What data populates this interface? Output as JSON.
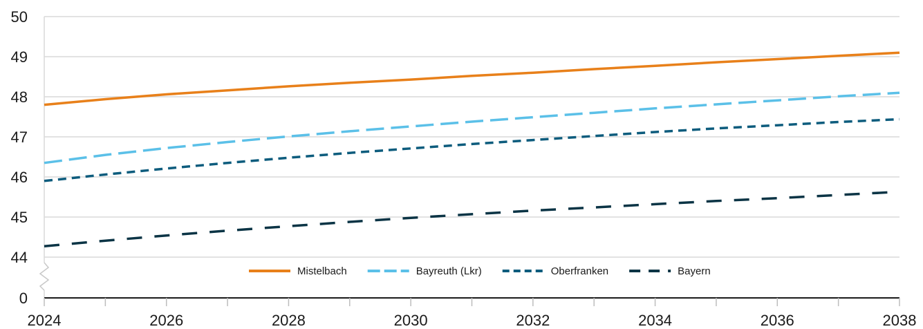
{
  "chart_data": {
    "type": "line",
    "title": "",
    "xlabel": "",
    "ylabel": "",
    "x": [
      2024,
      2025,
      2026,
      2027,
      2028,
      2029,
      2030,
      2031,
      2032,
      2033,
      2034,
      2035,
      2036,
      2037,
      2038
    ],
    "x_ticks": [
      "2024",
      "2026",
      "2028",
      "2030",
      "2032",
      "2034",
      "2036",
      "2038"
    ],
    "y_ticks": [
      "0",
      "44",
      "45",
      "46",
      "47",
      "48",
      "49",
      "50"
    ],
    "ylim": [
      44,
      50
    ],
    "y_axis_break": "between 0 and 44",
    "grid": "horizontal",
    "legend_position": "bottom-center",
    "series": [
      {
        "name": "Mistelbach",
        "color": "#e8801a",
        "style": "solid",
        "values": [
          47.8,
          47.94,
          48.06,
          48.16,
          48.26,
          48.35,
          48.43,
          48.52,
          48.6,
          48.69,
          48.77,
          48.86,
          48.94,
          49.02,
          49.1
        ]
      },
      {
        "name": "Bayreuth (Lkr)",
        "color": "#5bc0e8",
        "style": "long-dash",
        "values": [
          46.35,
          46.55,
          46.72,
          46.87,
          47.01,
          47.14,
          47.26,
          47.38,
          47.49,
          47.6,
          47.71,
          47.81,
          47.91,
          48.01,
          48.1
        ]
      },
      {
        "name": "Oberfranken",
        "color": "#0d5c7d",
        "style": "short-dash",
        "values": [
          45.9,
          46.06,
          46.21,
          46.35,
          46.48,
          46.6,
          46.71,
          46.82,
          46.92,
          47.02,
          47.12,
          47.21,
          47.29,
          47.37,
          47.44
        ]
      },
      {
        "name": "Bayern",
        "color": "#0b3445",
        "style": "dash",
        "values": [
          44.27,
          44.41,
          44.54,
          44.66,
          44.77,
          44.88,
          44.98,
          45.07,
          45.16,
          45.24,
          45.32,
          45.4,
          45.47,
          45.55,
          45.63
        ]
      }
    ]
  }
}
